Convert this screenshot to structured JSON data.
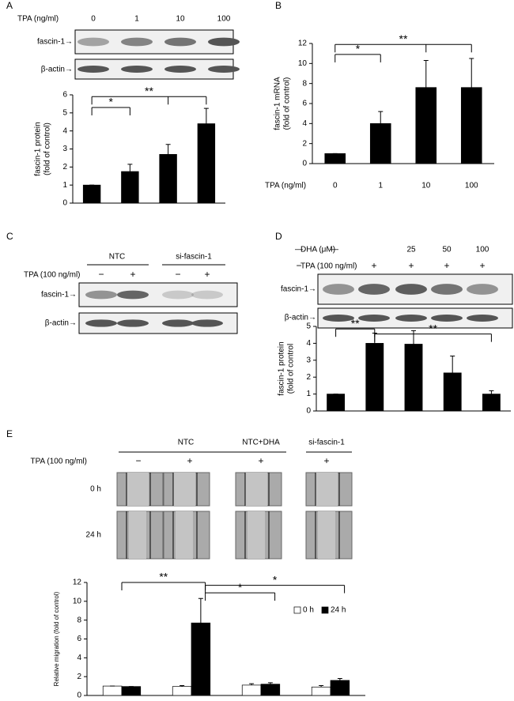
{
  "labels": [
    "A",
    "B",
    "C",
    "D",
    "E"
  ],
  "blot_a": {
    "header": "TPA (ng/ml)",
    "lanes": [
      "0",
      "1",
      "10",
      "100"
    ],
    "rows": [
      "fascin-1→",
      "β-actin→"
    ]
  },
  "blot_c": {
    "groups": [
      "NTC",
      "si-fascin-1"
    ],
    "header": "TPA (100 ng/ml)",
    "signs": [
      "−",
      "+",
      "−",
      "+"
    ],
    "rows": [
      "fascin-1→",
      "β-actin→"
    ]
  },
  "blot_d": {
    "dha_header": "DHA (μM)",
    "dha": [
      "—",
      "—",
      "25",
      "50",
      "100"
    ],
    "tpa_header": "TPA (100 ng/ml)",
    "tpa": [
      "−",
      "+",
      "+",
      "+",
      "+"
    ],
    "rows": [
      "fascin-1→",
      "β-actin→"
    ]
  },
  "migration": {
    "groups": [
      "NTC",
      "NTC+DHA",
      "si-fascin-1"
    ],
    "header": "TPA (100 ng/ml)",
    "signs": [
      "−",
      "+",
      "+",
      "+"
    ],
    "rows": [
      "0 h",
      "24 h"
    ]
  },
  "chart_data": [
    {
      "type": "bar",
      "ylabel": [
        "fascin-1 protein",
        "(fold of control)"
      ],
      "categories": [
        null,
        null,
        null,
        null
      ],
      "values": [
        1,
        1.75,
        2.7,
        4.4
      ],
      "errors": [
        0,
        0.4,
        0.55,
        0.85
      ],
      "color": "#000000",
      "ylim": [
        0,
        6
      ],
      "yticks": [
        0,
        1,
        2,
        3,
        4,
        5,
        6
      ],
      "annotations": [
        "*",
        "**"
      ]
    },
    {
      "type": "bar",
      "ylabel": [
        "fascin-1  mRNA",
        "(fold of control)"
      ],
      "xlabel": "TPA (ng/ml)",
      "categories": [
        "0",
        "1",
        "10",
        "100"
      ],
      "values": [
        1,
        4,
        7.6,
        7.6
      ],
      "errors": [
        0,
        1.2,
        2.7,
        2.9
      ],
      "color": "#000000",
      "ylim": [
        0,
        12
      ],
      "yticks": [
        0,
        2,
        4,
        6,
        8,
        10,
        12
      ],
      "annotations": [
        "*",
        "**"
      ]
    },
    {
      "type": "bar",
      "ylabel": [
        "fascin-1 protein",
        "(fold of control"
      ],
      "categories": [
        null,
        null,
        null,
        null,
        null
      ],
      "values": [
        1,
        4,
        3.95,
        2.25,
        1
      ],
      "errors": [
        0,
        0.6,
        0.8,
        1.0,
        0.2
      ],
      "color": "#000000",
      "ylim": [
        0,
        5
      ],
      "yticks": [
        0,
        1,
        2,
        3,
        4,
        5
      ],
      "annotations": [
        "**",
        "**"
      ]
    },
    {
      "type": "grouped_bar",
      "ylabel": [
        "Relative migration (fold of control)"
      ],
      "categories": [
        null,
        null,
        null,
        null
      ],
      "series": [
        {
          "name": "0 h",
          "color": "#ffffff",
          "values": [
            1,
            0.95,
            1.1,
            0.9
          ],
          "errors": [
            0,
            0.1,
            0.15,
            0.15
          ]
        },
        {
          "name": "24 h",
          "color": "#000000",
          "values": [
            0.95,
            7.7,
            1.2,
            1.6
          ],
          "errors": [
            0,
            2.6,
            0.15,
            0.2
          ]
        }
      ],
      "ylim": [
        0,
        12
      ],
      "yticks": [
        0,
        2,
        4,
        6,
        8,
        10,
        12
      ],
      "legend": "upper right",
      "annotations": [
        "**",
        "*",
        "*"
      ]
    }
  ]
}
